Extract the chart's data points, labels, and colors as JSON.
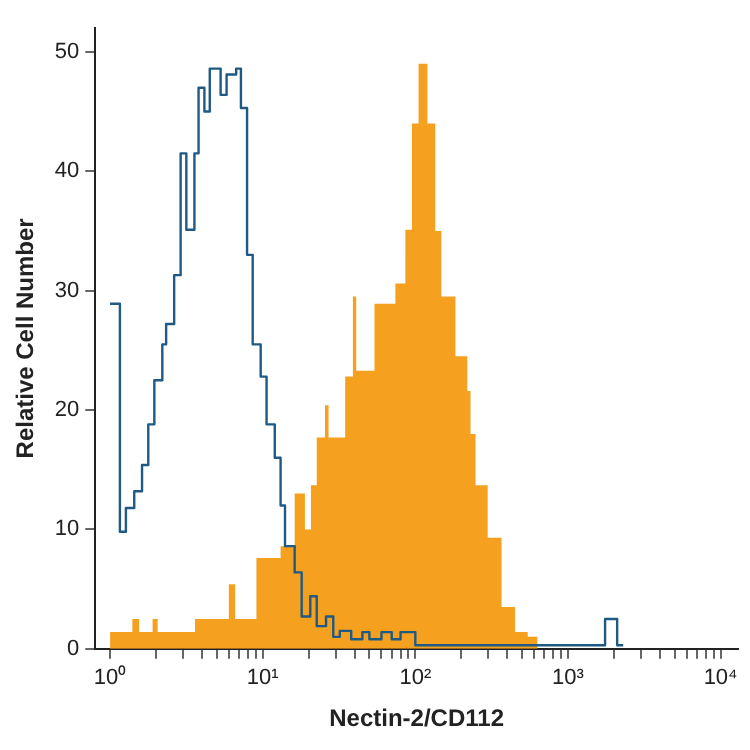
{
  "chart_data": {
    "type": "line",
    "xlabel": "Nectin-2/CD112",
    "ylabel": "Relative Cell Number",
    "log": "x",
    "grid": false,
    "legend": false,
    "marker": "none",
    "xlim": [
      0.8,
      13000
    ],
    "ylim": [
      0,
      52
    ],
    "xticks": [
      {
        "value": 1,
        "label": "10⁰"
      },
      {
        "value": 2,
        "label": null
      },
      {
        "value": 3,
        "label": null
      },
      {
        "value": 4,
        "label": null
      },
      {
        "value": 5,
        "label": null
      },
      {
        "value": 6,
        "label": null
      },
      {
        "value": 7,
        "label": null
      },
      {
        "value": 8,
        "label": null
      },
      {
        "value": 9,
        "label": null
      },
      {
        "value": 10,
        "label": "10¹"
      },
      {
        "value": 20,
        "label": null
      },
      {
        "value": 30,
        "label": null
      },
      {
        "value": 40,
        "label": null
      },
      {
        "value": 50,
        "label": null
      },
      {
        "value": 60,
        "label": null
      },
      {
        "value": 70,
        "label": null
      },
      {
        "value": 80,
        "label": null
      },
      {
        "value": 90,
        "label": null
      },
      {
        "value": 100,
        "label": "10²"
      },
      {
        "value": 200,
        "label": null
      },
      {
        "value": 300,
        "label": null
      },
      {
        "value": 400,
        "label": null
      },
      {
        "value": 500,
        "label": null
      },
      {
        "value": 600,
        "label": null
      },
      {
        "value": 700,
        "label": null
      },
      {
        "value": 800,
        "label": null
      },
      {
        "value": 900,
        "label": null
      },
      {
        "value": 1000,
        "label": "10³"
      },
      {
        "value": 2000,
        "label": null
      },
      {
        "value": 3000,
        "label": null
      },
      {
        "value": 4000,
        "label": null
      },
      {
        "value": 5000,
        "label": null
      },
      {
        "value": 6000,
        "label": null
      },
      {
        "value": 7000,
        "label": null
      },
      {
        "value": 8000,
        "label": null
      },
      {
        "value": 9000,
        "label": null
      },
      {
        "value": 10000,
        "label": "10⁴"
      }
    ],
    "yticks": [
      0,
      10,
      20,
      30,
      40,
      50
    ],
    "series": [
      {
        "type": "area",
        "color": "#f5a01e",
        "x": [
          1,
          1.4,
          1.55,
          1.9,
          2.05,
          3.6,
          6.0,
          6.6,
          9.1,
          13.1,
          16.2,
          18.9,
          20.7,
          22.6,
          25.6,
          27,
          34.7,
          39,
          41,
          54,
          74,
          86,
          95,
          105,
          120,
          135,
          148,
          183,
          219,
          230,
          248,
          298,
          367,
          450,
          545,
          630,
          650
        ],
        "values": [
          1.4,
          2.5,
          1.4,
          2.5,
          1.4,
          2.5,
          5.4,
          2.5,
          7.6,
          8.6,
          13,
          10,
          13.7,
          17.7,
          20.4,
          17.7,
          22.8,
          29.5,
          23.3,
          28.9,
          30.6,
          35.1,
          44,
          49,
          44,
          35,
          29.5,
          24.5,
          21.6,
          18,
          13.7,
          9.3,
          3.5,
          1.4,
          1,
          0,
          0
        ]
      },
      {
        "type": "step",
        "color": "#1f5a85",
        "x": [
          1,
          1.16,
          1.27,
          1.44,
          1.62,
          1.78,
          1.95,
          2.2,
          2.33,
          2.63,
          2.9,
          3.16,
          3.57,
          3.8,
          4.15,
          4.5,
          5.3,
          5.8,
          6.7,
          7.2,
          7.9,
          8.6,
          9.7,
          10.6,
          12,
          13.1,
          14,
          16.2,
          18,
          20.5,
          22.6,
          26,
          29,
          32,
          38,
          45,
          50,
          60,
          70,
          80,
          100,
          1750,
          2100,
          2300
        ],
        "values": [
          28.9,
          9.8,
          11.8,
          13.2,
          15.4,
          18.8,
          22.5,
          25.5,
          27.2,
          31.3,
          41.5,
          35.1,
          41.5,
          47,
          45,
          48.6,
          46.4,
          48.1,
          48.6,
          45.3,
          33,
          25.5,
          22.8,
          18.8,
          16,
          12,
          8.6,
          6.4,
          2.7,
          4.4,
          1.9,
          2.7,
          1,
          1.5,
          0.8,
          1.4,
          0.8,
          1.4,
          0.8,
          1.4,
          0.3,
          2.5,
          0.3,
          0.3
        ]
      }
    ]
  }
}
